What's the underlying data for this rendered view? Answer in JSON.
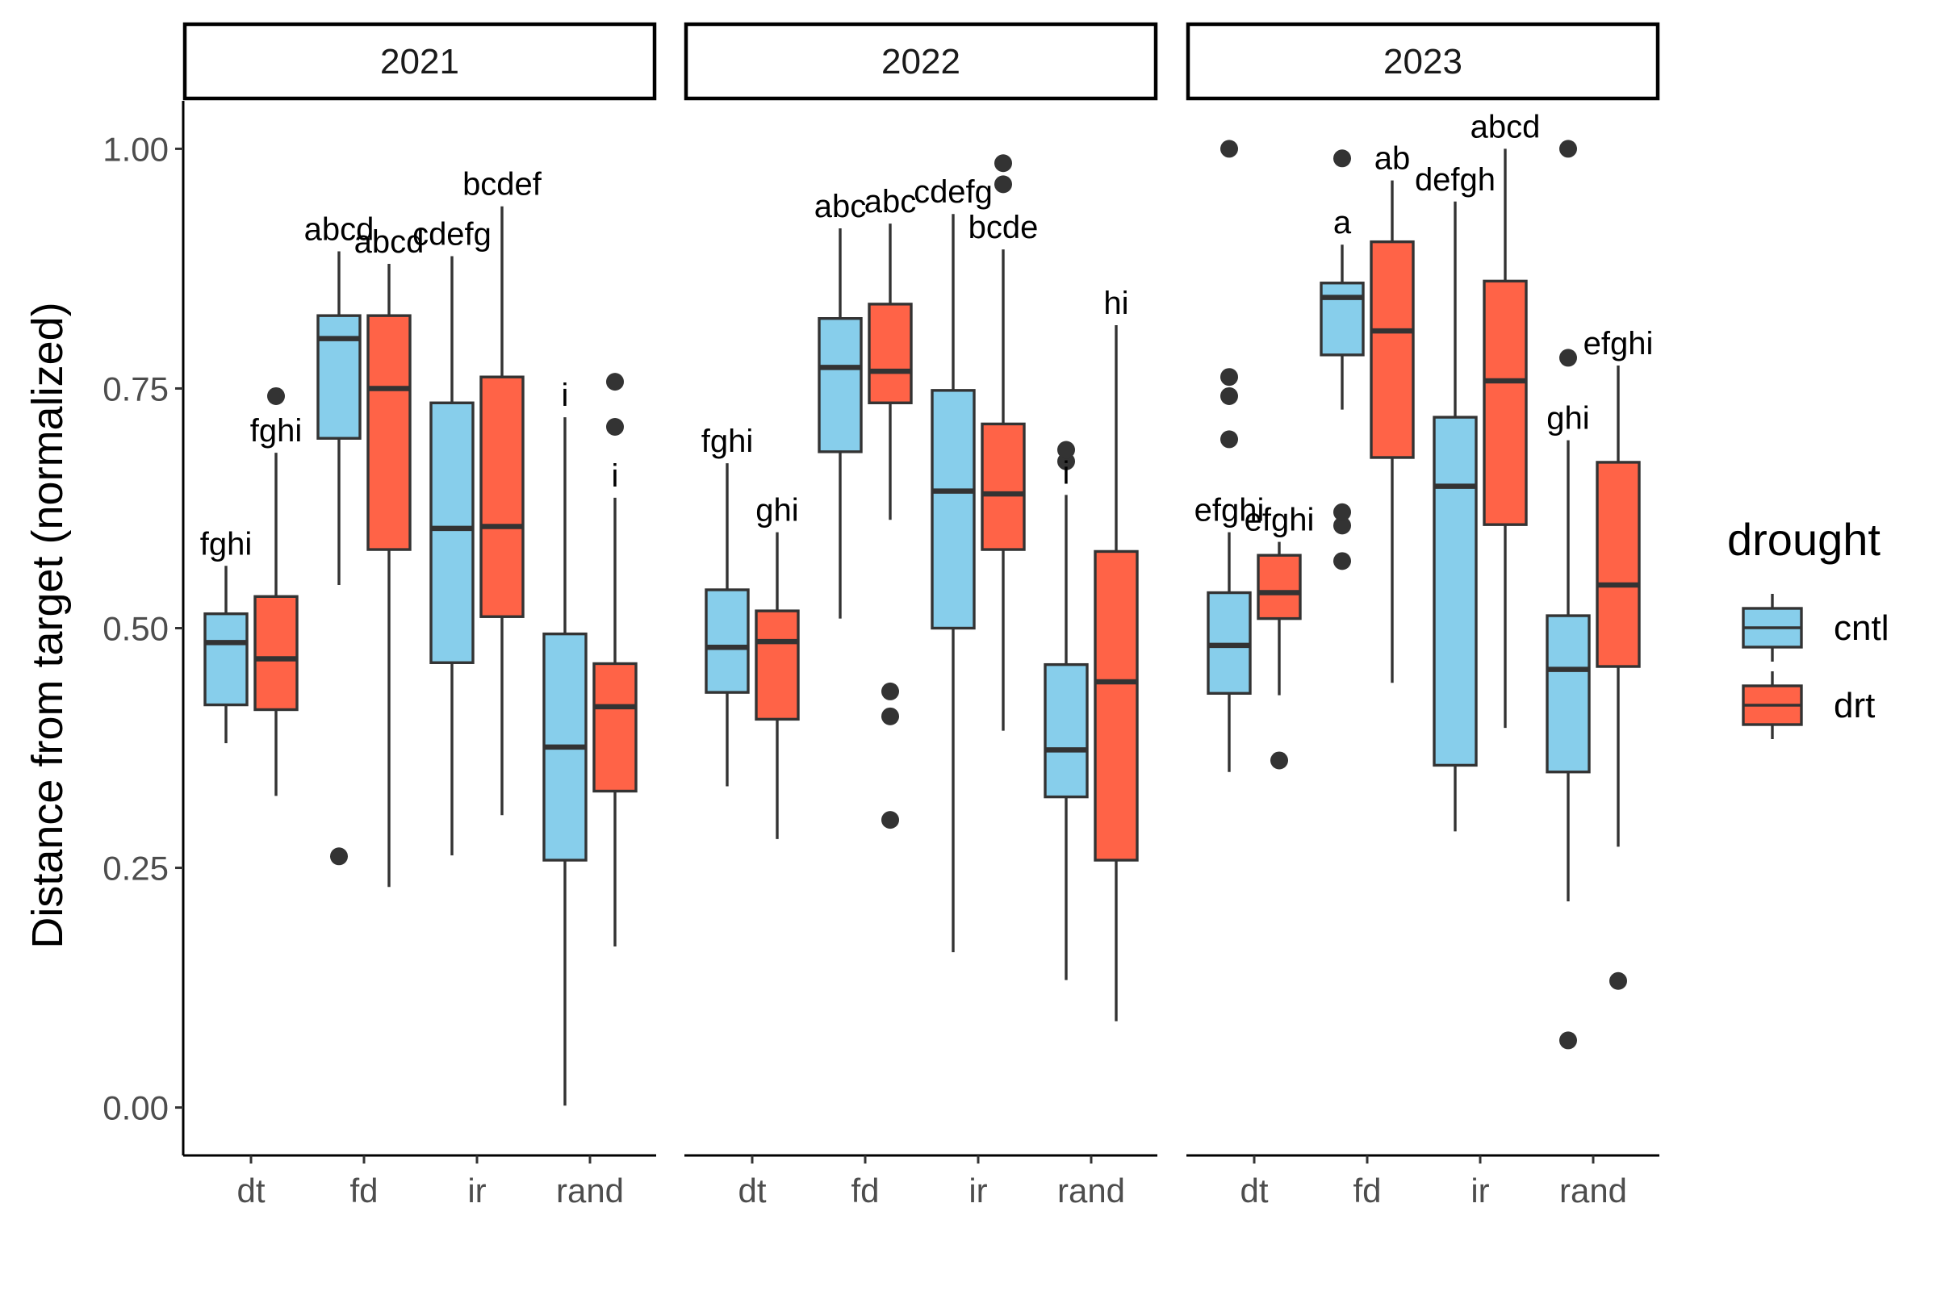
{
  "chart_data": {
    "type": "boxplot",
    "ylabel": "Distance from target (normalized)",
    "ylim": [
      -0.05,
      1.05
    ],
    "y_ticks": [
      0.0,
      0.25,
      0.5,
      0.75,
      1.0
    ],
    "y_tick_labels": [
      "0.00",
      "0.25",
      "0.50",
      "0.75",
      "1.00"
    ],
    "categories": [
      "dt",
      "fd",
      "ir",
      "rand"
    ],
    "legend": {
      "title": "drought",
      "position": "right",
      "items": [
        {
          "key": "cntl",
          "label": "cntl",
          "color": "#87CEEB"
        },
        {
          "key": "drt",
          "label": "drt",
          "color": "#FF6347"
        }
      ]
    },
    "panels": [
      {
        "title": "2021",
        "groups": [
          {
            "category": "dt",
            "series": "cntl",
            "lower_whisker": 0.38,
            "q1": 0.42,
            "median": 0.485,
            "q3": 0.515,
            "upper_whisker": 0.565,
            "outliers": [],
            "letter": "fghi"
          },
          {
            "category": "dt",
            "series": "drt",
            "lower_whisker": 0.325,
            "q1": 0.415,
            "median": 0.468,
            "q3": 0.533,
            "upper_whisker": 0.683,
            "outliers": [
              0.742
            ],
            "letter": "fghi"
          },
          {
            "category": "fd",
            "series": "cntl",
            "lower_whisker": 0.545,
            "q1": 0.698,
            "median": 0.802,
            "q3": 0.826,
            "upper_whisker": 0.893,
            "outliers": [
              0.262
            ],
            "letter": "abcd"
          },
          {
            "category": "fd",
            "series": "drt",
            "lower_whisker": 0.23,
            "q1": 0.582,
            "median": 0.75,
            "q3": 0.826,
            "upper_whisker": 0.88,
            "outliers": [],
            "letter": "abcd"
          },
          {
            "category": "ir",
            "series": "cntl",
            "lower_whisker": 0.263,
            "q1": 0.464,
            "median": 0.604,
            "q3": 0.735,
            "upper_whisker": 0.888,
            "outliers": [],
            "letter": "cdefg"
          },
          {
            "category": "ir",
            "series": "drt",
            "lower_whisker": 0.305,
            "q1": 0.512,
            "median": 0.606,
            "q3": 0.762,
            "upper_whisker": 0.94,
            "outliers": [],
            "letter": "bcdef"
          },
          {
            "category": "rand",
            "series": "cntl",
            "lower_whisker": 0.002,
            "q1": 0.258,
            "median": 0.376,
            "q3": 0.494,
            "upper_whisker": 0.72,
            "outliers": [],
            "letter": "i"
          },
          {
            "category": "rand",
            "series": "drt",
            "lower_whisker": 0.168,
            "q1": 0.33,
            "median": 0.418,
            "q3": 0.463,
            "upper_whisker": 0.636,
            "outliers": [
              0.71,
              0.757
            ],
            "letter": "i"
          }
        ]
      },
      {
        "title": "2022",
        "groups": [
          {
            "category": "dt",
            "series": "cntl",
            "lower_whisker": 0.335,
            "q1": 0.433,
            "median": 0.48,
            "q3": 0.54,
            "upper_whisker": 0.672,
            "outliers": [],
            "letter": "fghi"
          },
          {
            "category": "dt",
            "series": "drt",
            "lower_whisker": 0.28,
            "q1": 0.405,
            "median": 0.486,
            "q3": 0.518,
            "upper_whisker": 0.6,
            "outliers": [],
            "letter": "ghi"
          },
          {
            "category": "fd",
            "series": "cntl",
            "lower_whisker": 0.51,
            "q1": 0.684,
            "median": 0.772,
            "q3": 0.823,
            "upper_whisker": 0.917,
            "outliers": [],
            "letter": "abc"
          },
          {
            "category": "fd",
            "series": "drt",
            "lower_whisker": 0.613,
            "q1": 0.735,
            "median": 0.768,
            "q3": 0.838,
            "upper_whisker": 0.922,
            "outliers": [
              0.3,
              0.408,
              0.434
            ],
            "letter": "abc"
          },
          {
            "category": "ir",
            "series": "cntl",
            "lower_whisker": 0.162,
            "q1": 0.5,
            "median": 0.643,
            "q3": 0.748,
            "upper_whisker": 0.932,
            "outliers": [],
            "letter": "cdefg"
          },
          {
            "category": "ir",
            "series": "drt",
            "lower_whisker": 0.393,
            "q1": 0.582,
            "median": 0.64,
            "q3": 0.713,
            "upper_whisker": 0.895,
            "outliers": [
              0.963,
              0.985
            ],
            "letter": "bcde"
          },
          {
            "category": "rand",
            "series": "cntl",
            "lower_whisker": 0.133,
            "q1": 0.324,
            "median": 0.373,
            "q3": 0.462,
            "upper_whisker": 0.639,
            "outliers": [
              0.674,
              0.686
            ],
            "letter": "i"
          },
          {
            "category": "rand",
            "series": "drt",
            "lower_whisker": 0.09,
            "q1": 0.258,
            "median": 0.444,
            "q3": 0.58,
            "upper_whisker": 0.816,
            "outliers": [],
            "letter": "hi"
          }
        ]
      },
      {
        "title": "2023",
        "groups": [
          {
            "category": "dt",
            "series": "cntl",
            "lower_whisker": 0.35,
            "q1": 0.432,
            "median": 0.482,
            "q3": 0.537,
            "upper_whisker": 0.6,
            "outliers": [
              0.697,
              0.742,
              0.762,
              1.0
            ],
            "letter": "efghi"
          },
          {
            "category": "dt",
            "series": "drt",
            "lower_whisker": 0.43,
            "q1": 0.51,
            "median": 0.537,
            "q3": 0.576,
            "upper_whisker": 0.59,
            "outliers": [
              0.362
            ],
            "letter": "efghi"
          },
          {
            "category": "fd",
            "series": "cntl",
            "lower_whisker": 0.728,
            "q1": 0.785,
            "median": 0.845,
            "q3": 0.86,
            "upper_whisker": 0.9,
            "outliers": [
              0.57,
              0.607,
              0.621,
              0.99
            ],
            "letter": "a"
          },
          {
            "category": "fd",
            "series": "drt",
            "lower_whisker": 0.443,
            "q1": 0.678,
            "median": 0.81,
            "q3": 0.903,
            "upper_whisker": 0.967,
            "outliers": [],
            "letter": "ab"
          },
          {
            "category": "ir",
            "series": "cntl",
            "lower_whisker": 0.288,
            "q1": 0.357,
            "median": 0.648,
            "q3": 0.72,
            "upper_whisker": 0.945,
            "outliers": [],
            "letter": "defgh"
          },
          {
            "category": "ir",
            "series": "drt",
            "lower_whisker": 0.396,
            "q1": 0.608,
            "median": 0.758,
            "q3": 0.862,
            "upper_whisker": 1.0,
            "outliers": [],
            "letter": "abcd"
          },
          {
            "category": "rand",
            "series": "cntl",
            "lower_whisker": 0.215,
            "q1": 0.35,
            "median": 0.457,
            "q3": 0.513,
            "upper_whisker": 0.696,
            "outliers": [
              0.07,
              0.782,
              1.0
            ],
            "letter": "ghi"
          },
          {
            "category": "rand",
            "series": "drt",
            "lower_whisker": 0.272,
            "q1": 0.46,
            "median": 0.545,
            "q3": 0.673,
            "upper_whisker": 0.774,
            "outliers": [
              0.132
            ],
            "letter": "efghi"
          }
        ]
      }
    ]
  }
}
